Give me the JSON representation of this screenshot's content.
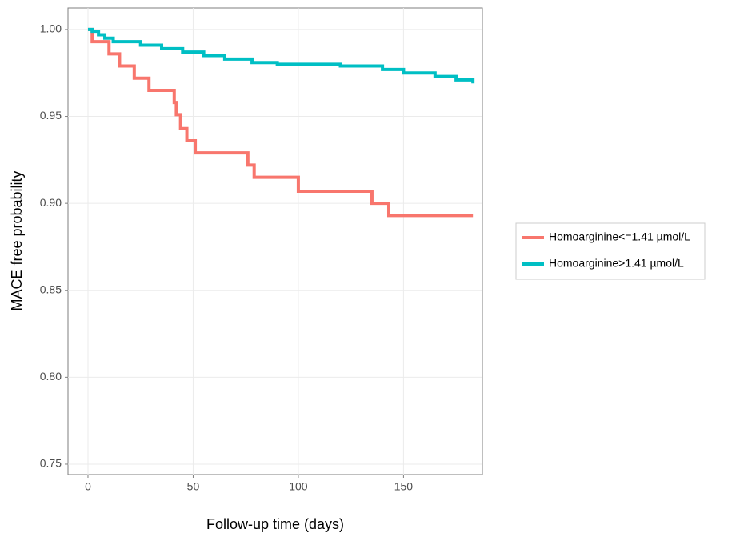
{
  "chart_data": {
    "type": "step",
    "xlabel": "Follow-up time (days)",
    "ylabel": "MACE free probability",
    "xlim": [
      -9.5,
      187.5
    ],
    "ylim": [
      0.744,
      1.0124
    ],
    "xticks": [
      0,
      50,
      100,
      150
    ],
    "yticks": [
      {
        "value": 0.75,
        "label": "0.75"
      },
      {
        "value": 0.8,
        "label": "0.80"
      },
      0.85,
      {
        "value": 0.9,
        "label": "0.90"
      },
      0.95,
      {
        "value": 1.0,
        "label": "1.00"
      }
    ],
    "grid": true,
    "legend": "right",
    "series": [
      {
        "name": "Homoarginine<=1.41 µmol/L",
        "color": "#F8766D",
        "x": [
          0,
          2,
          10,
          15,
          22,
          29,
          41,
          42,
          44,
          47,
          51,
          76,
          79,
          100,
          135,
          143,
          183
        ],
        "values": [
          1.0,
          0.993,
          0.986,
          0.979,
          0.972,
          0.965,
          0.958,
          0.951,
          0.943,
          0.936,
          0.929,
          0.922,
          0.915,
          0.907,
          0.9,
          0.893,
          0.893
        ]
      },
      {
        "name": "Homoarginine>1.41 µmol/L",
        "color": "#00BFC4",
        "x": [
          0,
          2,
          5,
          8,
          12,
          25,
          35,
          45,
          55,
          65,
          78,
          90,
          120,
          140,
          150,
          165,
          175,
          183
        ],
        "values": [
          1.0,
          0.999,
          0.997,
          0.995,
          0.993,
          0.991,
          0.989,
          0.987,
          0.985,
          0.983,
          0.981,
          0.98,
          0.979,
          0.977,
          0.975,
          0.973,
          0.971,
          0.969
        ]
      }
    ]
  }
}
